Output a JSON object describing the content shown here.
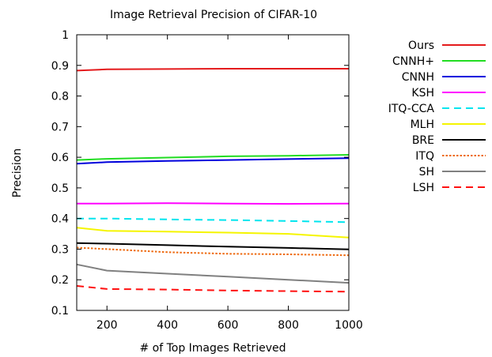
{
  "chart_data": {
    "type": "line",
    "title": "Image Retrieval Precision of CIFAR-10",
    "xlabel": "# of Top Images Retrieved",
    "ylabel": "Precision",
    "xlim": [
      100,
      1000
    ],
    "ylim": [
      0.1,
      1
    ],
    "xticks": [
      200,
      400,
      600,
      800,
      1000
    ],
    "yticks": [
      0.1,
      0.2,
      0.3,
      0.4,
      0.5,
      0.6,
      0.7,
      0.8,
      0.9,
      1
    ],
    "x": [
      100,
      200,
      400,
      600,
      800,
      1000
    ],
    "legend_position": "outside-right",
    "grid": false,
    "series": [
      {
        "name": "Ours",
        "color": "#e41a1c",
        "dash": "solid",
        "values": [
          0.883,
          0.887,
          0.888,
          0.889,
          0.889,
          0.889
        ]
      },
      {
        "name": "CNNH+",
        "color": "#22dd22",
        "dash": "solid",
        "values": [
          0.591,
          0.595,
          0.599,
          0.603,
          0.605,
          0.608
        ]
      },
      {
        "name": "CNNH",
        "color": "#0000dd",
        "dash": "solid",
        "values": [
          0.579,
          0.584,
          0.588,
          0.591,
          0.594,
          0.597
        ]
      },
      {
        "name": "KSH",
        "color": "#ff00ff",
        "dash": "solid",
        "values": [
          0.449,
          0.449,
          0.45,
          0.449,
          0.448,
          0.449
        ]
      },
      {
        "name": "ITQ-CCA",
        "color": "#00e5ee",
        "dash": "dashed",
        "values": [
          0.4,
          0.4,
          0.397,
          0.395,
          0.392,
          0.388
        ]
      },
      {
        "name": "MLH",
        "color": "#f5f500",
        "dash": "solid",
        "values": [
          0.37,
          0.36,
          0.357,
          0.354,
          0.35,
          0.338
        ]
      },
      {
        "name": "BRE",
        "color": "#000000",
        "dash": "solid",
        "values": [
          0.32,
          0.318,
          0.313,
          0.308,
          0.304,
          0.299
        ]
      },
      {
        "name": "ITQ",
        "color": "#ee6a10",
        "dash": "dotted",
        "values": [
          0.305,
          0.3,
          0.29,
          0.285,
          0.283,
          0.28
        ]
      },
      {
        "name": "SH",
        "color": "#808080",
        "dash": "solid",
        "values": [
          0.25,
          0.23,
          0.22,
          0.21,
          0.2,
          0.19
        ]
      },
      {
        "name": "LSH",
        "color": "#ff1111",
        "dash": "dashed",
        "values": [
          0.18,
          0.17,
          0.168,
          0.165,
          0.163,
          0.161
        ]
      }
    ]
  }
}
